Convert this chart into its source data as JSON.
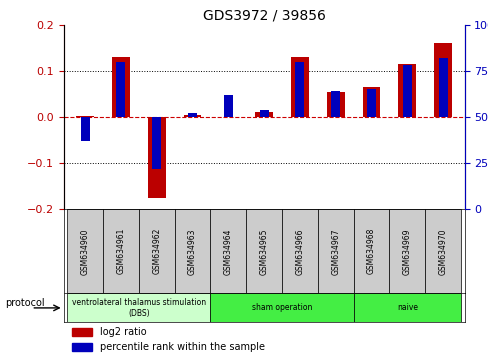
{
  "title": "GDS3972 / 39856",
  "samples": [
    "GSM634960",
    "GSM634961",
    "GSM634962",
    "GSM634963",
    "GSM634964",
    "GSM634965",
    "GSM634966",
    "GSM634967",
    "GSM634968",
    "GSM634969",
    "GSM634970"
  ],
  "log2_ratio": [
    0.003,
    0.13,
    -0.175,
    0.005,
    0.0,
    0.01,
    0.13,
    0.055,
    0.065,
    0.115,
    0.16
  ],
  "percentile_rank": [
    37,
    80,
    22,
    52,
    62,
    54,
    80,
    64,
    65,
    78,
    82
  ],
  "ylim": [
    -0.2,
    0.2
  ],
  "y2lim": [
    0,
    100
  ],
  "yticks": [
    -0.2,
    -0.1,
    0.0,
    0.1,
    0.2
  ],
  "y2ticks": [
    0,
    25,
    50,
    75,
    100
  ],
  "y2ticklabels": [
    "0",
    "25",
    "50",
    "75",
    "100%"
  ],
  "red_color": "#bb0000",
  "blue_color": "#0000bb",
  "zero_line_color": "#cc0000",
  "group_ranges": [
    [
      0,
      3,
      "#ccffcc",
      "ventrolateral thalamus stimulation\n(DBS)"
    ],
    [
      4,
      7,
      "#44ee44",
      "sham operation"
    ],
    [
      8,
      10,
      "#44ee44",
      "naive"
    ]
  ],
  "protocol_label": "protocol",
  "legend_red": "log2 ratio",
  "legend_blue": "percentile rank within the sample",
  "sample_box_color": "#cccccc",
  "bar_width": 0.5,
  "blue_bar_width": 0.25
}
